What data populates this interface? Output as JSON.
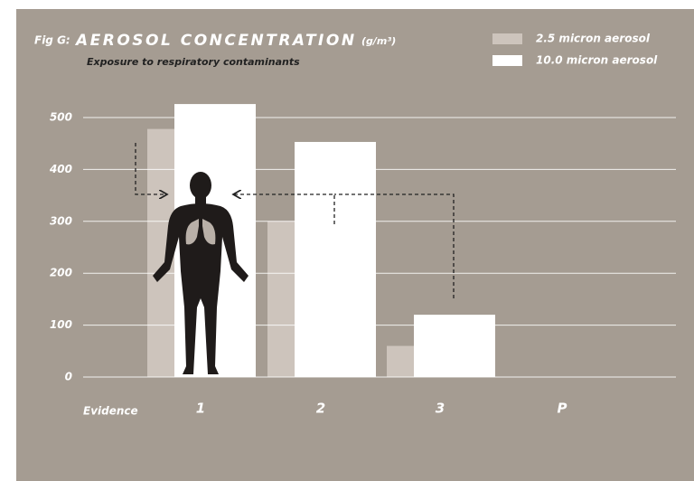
{
  "chart_data": {
    "type": "bar",
    "figure_label": "Fig G:",
    "title": "AEROSOL CONCENTRATION",
    "unit": "(g/m³)",
    "subtitle": "Exposure to respiratory contaminants",
    "x_label": "Evidence",
    "categories": [
      "1",
      "2",
      "3",
      "P"
    ],
    "series": [
      {
        "name": "2.5 micron aerosol",
        "color": "#cdc4bc",
        "values": [
          478,
          300,
          60,
          null
        ]
      },
      {
        "name": "10.0 micron aerosol",
        "color": "#ffffff",
        "values": [
          526,
          453,
          120,
          null
        ]
      }
    ],
    "ylim": [
      0,
      500
    ],
    "yticks": [
      0,
      100,
      200,
      300,
      400,
      500
    ],
    "grid": true
  }
}
